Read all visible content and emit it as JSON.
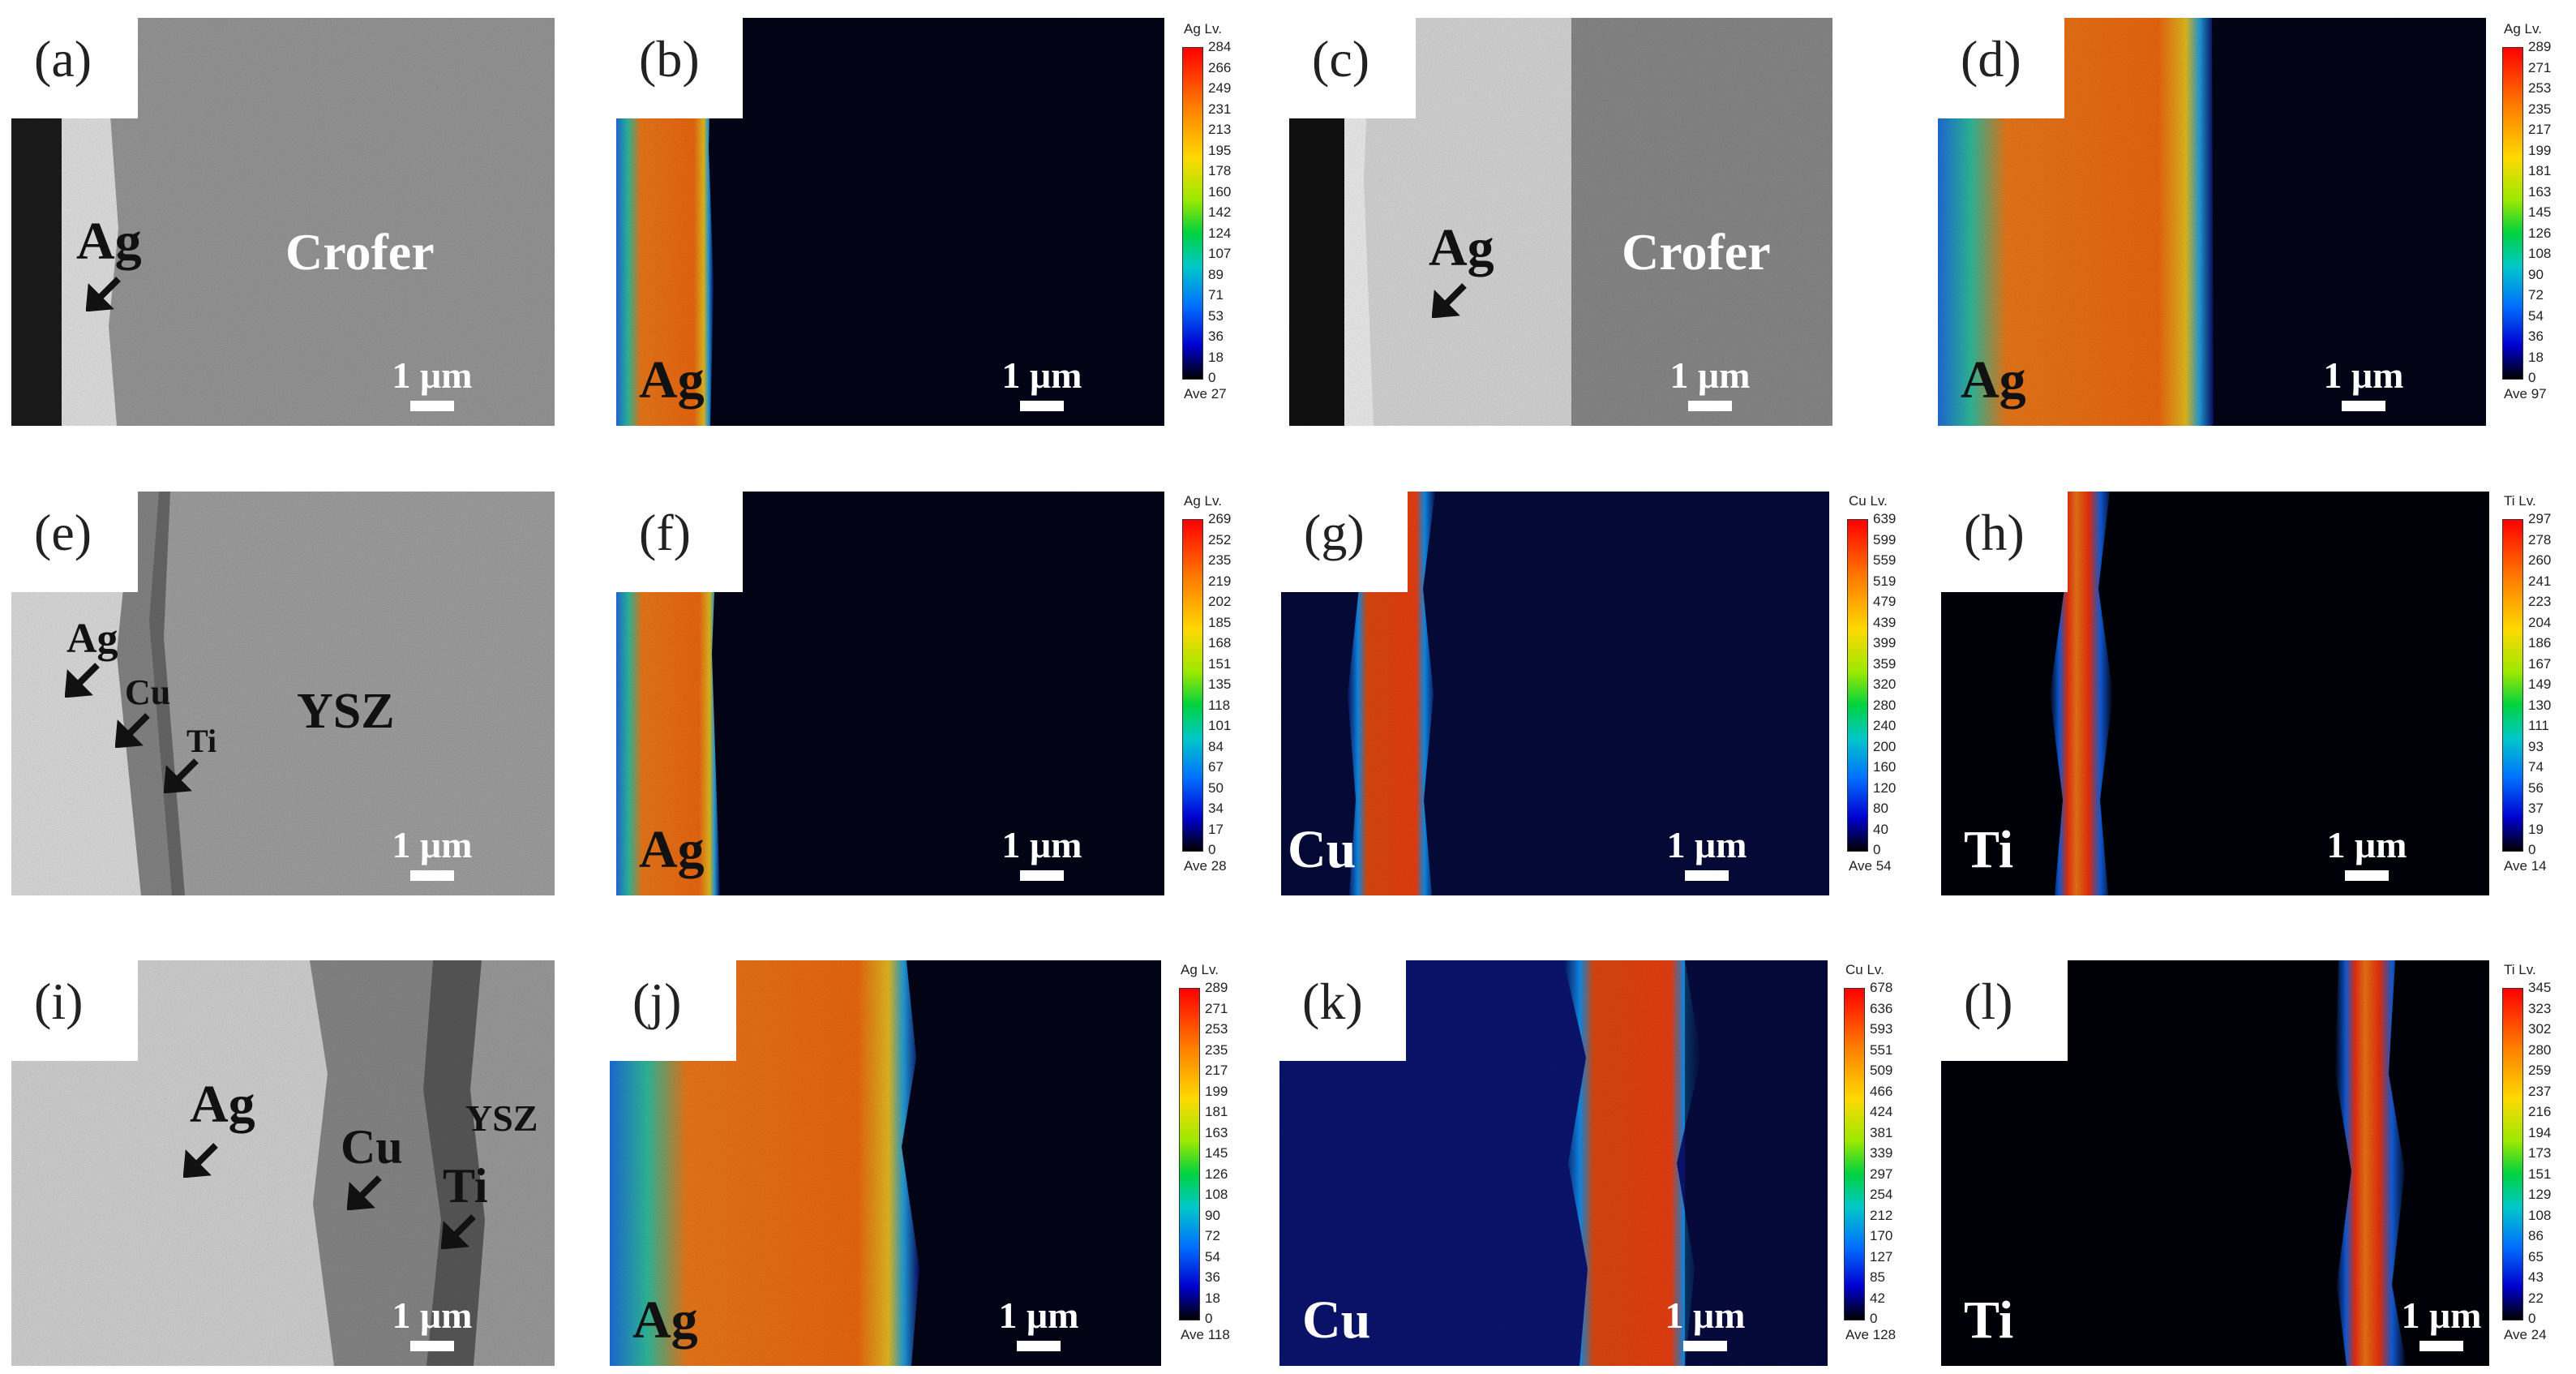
{
  "panels": {
    "a": {
      "label": "(a)",
      "ann": [
        "Ag",
        "Crofer"
      ],
      "scale": "1 μm"
    },
    "b": {
      "label": "(b)",
      "element": "Ag",
      "scale": "1 μm"
    },
    "c": {
      "label": "(c)",
      "ann": [
        "Ag",
        "Crofer"
      ],
      "scale": "1 μm"
    },
    "d": {
      "label": "(d)",
      "element": "Ag",
      "scale": "1 μm"
    },
    "e": {
      "label": "(e)",
      "ann": [
        "Ag",
        "Cu",
        "Ti",
        "YSZ"
      ],
      "scale": "1 μm"
    },
    "f": {
      "label": "(f)",
      "element": "Ag",
      "scale": "1 μm"
    },
    "g": {
      "label": "(g)",
      "element": "Cu",
      "scale": "1 μm"
    },
    "h": {
      "label": "(h)",
      "element": "Ti",
      "scale": "1 μm"
    },
    "i": {
      "label": "(i)",
      "ann": [
        "Ag",
        "Cu",
        "YSZ",
        "Ti"
      ],
      "scale": "1 μm"
    },
    "j": {
      "label": "(j)",
      "element": "Ag",
      "scale": "1 μm"
    },
    "k": {
      "label": "(k)",
      "element": "Cu",
      "scale": "1 μm"
    },
    "l": {
      "label": "(l)",
      "element": "Ti",
      "scale": "1 μm"
    }
  },
  "legends": {
    "b": {
      "title": "Ag Lv.",
      "ticks": [
        "284",
        "266",
        "249",
        "231",
        "213",
        "195",
        "178",
        "160",
        "142",
        "124",
        "107",
        "89",
        "71",
        "53",
        "36",
        "18",
        "0"
      ],
      "ave": "Ave 27"
    },
    "d": {
      "title": "Ag Lv.",
      "ticks": [
        "289",
        "271",
        "253",
        "235",
        "217",
        "199",
        "181",
        "163",
        "145",
        "126",
        "108",
        "90",
        "72",
        "54",
        "36",
        "18",
        "0"
      ],
      "ave": "Ave 97"
    },
    "f": {
      "title": "Ag Lv.",
      "ticks": [
        "269",
        "252",
        "235",
        "219",
        "202",
        "185",
        "168",
        "151",
        "135",
        "118",
        "101",
        "84",
        "67",
        "50",
        "34",
        "17",
        "0"
      ],
      "ave": "Ave 28"
    },
    "g": {
      "title": "Cu Lv.",
      "ticks": [
        "639",
        "599",
        "559",
        "519",
        "479",
        "439",
        "399",
        "359",
        "320",
        "280",
        "240",
        "200",
        "160",
        "120",
        "80",
        "40",
        "0"
      ],
      "ave": "Ave 54"
    },
    "h": {
      "title": "Ti Lv.",
      "ticks": [
        "297",
        "278",
        "260",
        "241",
        "223",
        "204",
        "186",
        "167",
        "149",
        "130",
        "111",
        "93",
        "74",
        "56",
        "37",
        "19",
        "0"
      ],
      "ave": "Ave 14"
    },
    "j": {
      "title": "Ag Lv.",
      "ticks": [
        "289",
        "271",
        "253",
        "235",
        "217",
        "199",
        "181",
        "163",
        "145",
        "126",
        "108",
        "90",
        "72",
        "54",
        "36",
        "18",
        "0"
      ],
      "ave": "Ave 118"
    },
    "k": {
      "title": "Cu Lv.",
      "ticks": [
        "678",
        "636",
        "593",
        "551",
        "509",
        "466",
        "424",
        "381",
        "339",
        "297",
        "254",
        "212",
        "170",
        "127",
        "85",
        "42",
        "0"
      ],
      "ave": "Ave 128"
    },
    "l": {
      "title": "Ti Lv.",
      "ticks": [
        "345",
        "323",
        "302",
        "280",
        "259",
        "237",
        "216",
        "194",
        "173",
        "151",
        "129",
        "108",
        "86",
        "65",
        "43",
        "22",
        "0"
      ],
      "ave": "Ave 24"
    }
  }
}
